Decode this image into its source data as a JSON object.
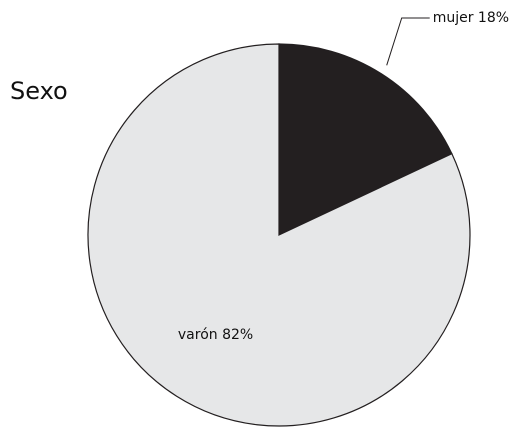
{
  "chart_data": {
    "type": "pie",
    "title": "Sexo",
    "values": [
      18,
      82
    ],
    "value_labels": [
      "mujer 18%",
      "varón 82%"
    ],
    "colors": [
      "#231f20",
      "#e6e7e8"
    ]
  }
}
